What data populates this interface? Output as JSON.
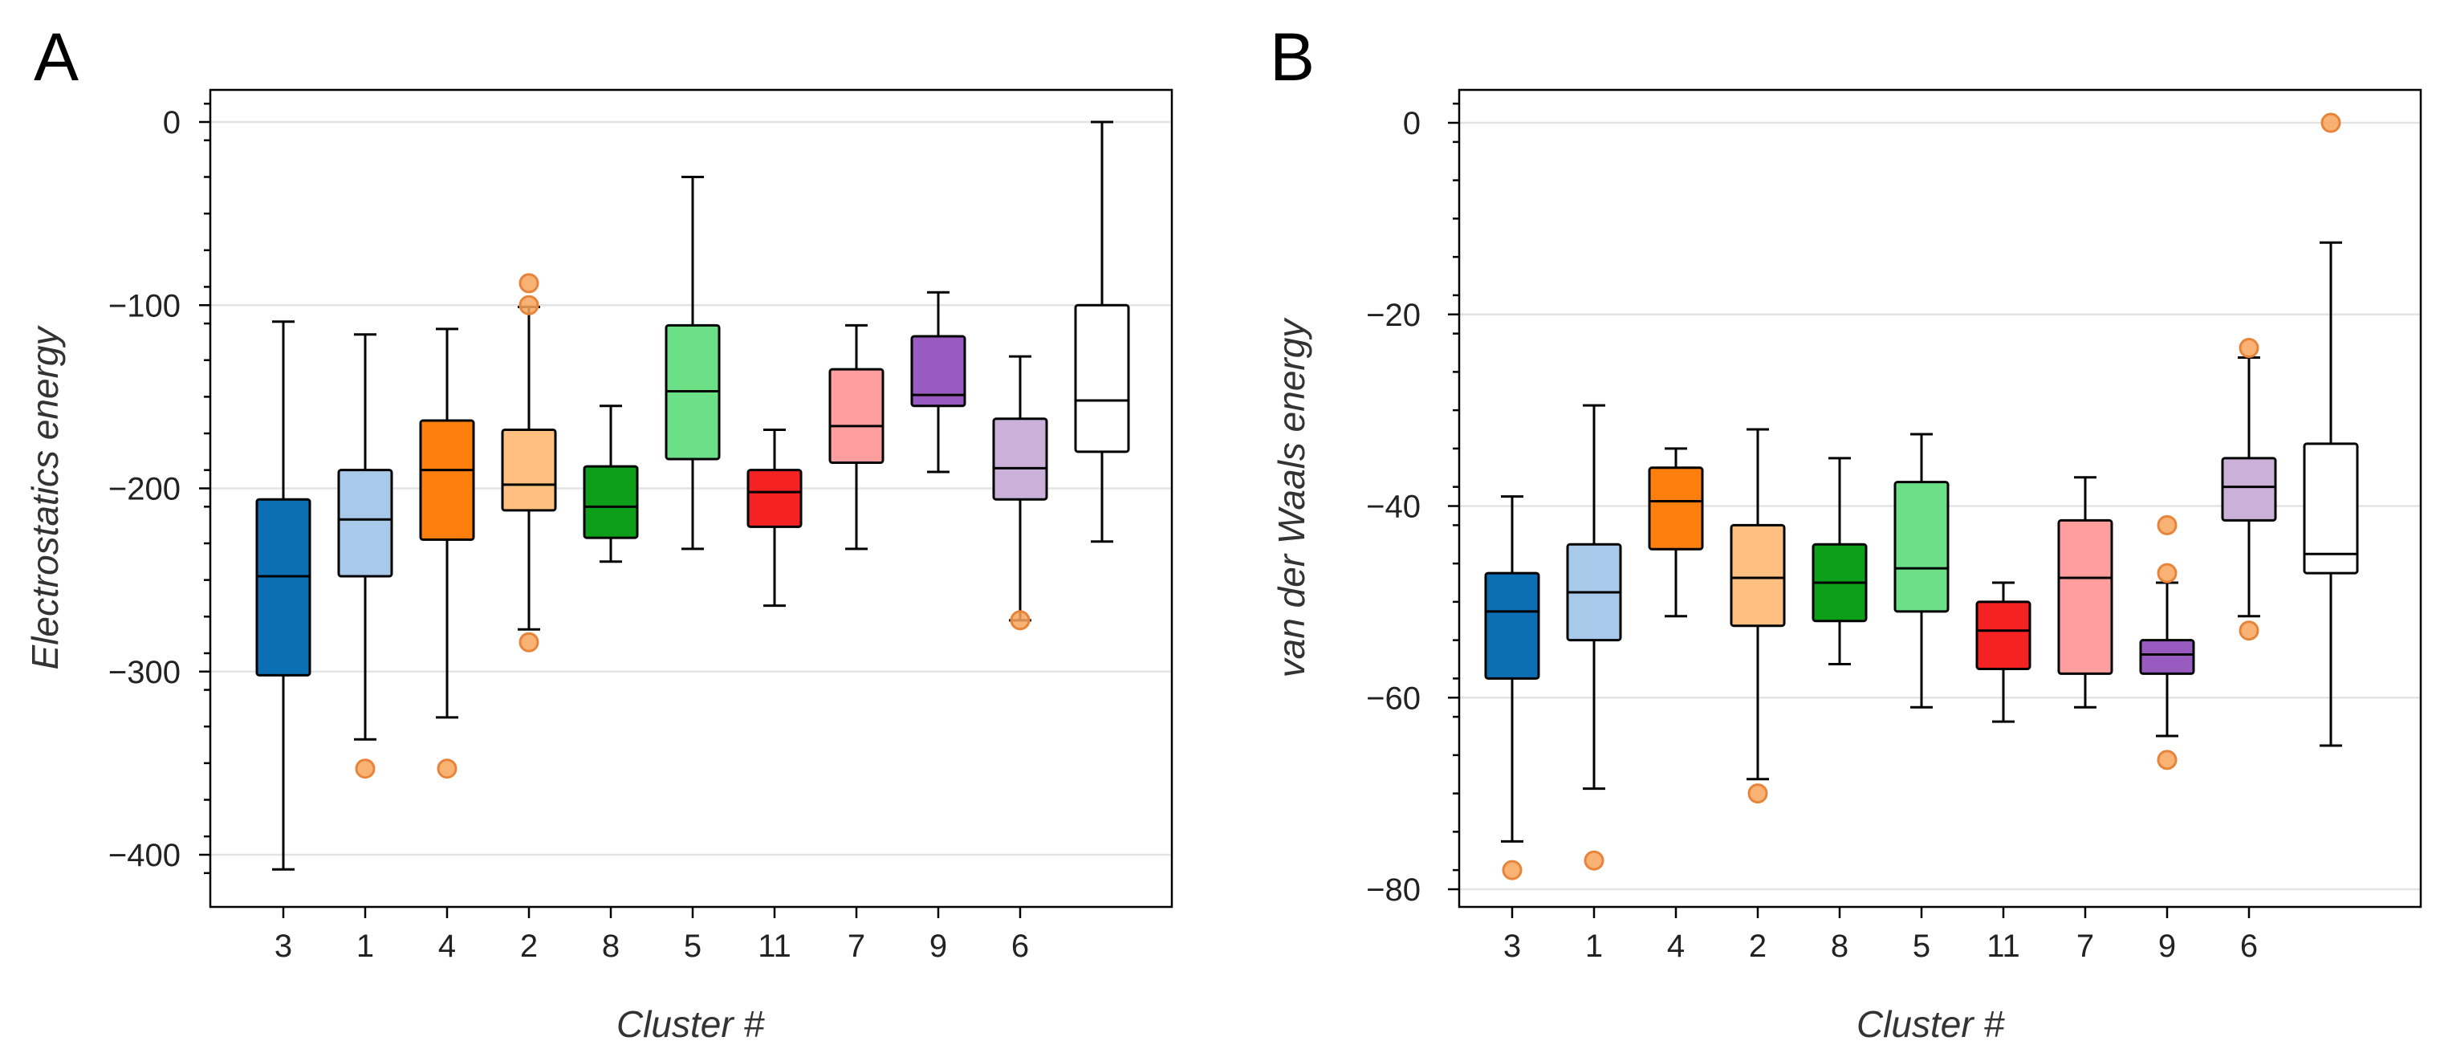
{
  "chart_data": [
    {
      "panel": "A",
      "type": "box",
      "ylabel": "Electrostatics energy",
      "xlabel": "Cluster #",
      "ylim": [
        -430,
        10
      ],
      "yticks": [
        0,
        -100,
        -200,
        -300,
        -400
      ],
      "ytick_labels": [
        "0",
        "−100",
        "−200",
        "−300",
        "−400"
      ],
      "grid": true,
      "boxes": [
        {
          "label": "3",
          "color": "#0c6fb3",
          "whisker_low": -408,
          "q1": -302,
          "median": -248,
          "q3": -206,
          "whisker_high": -109,
          "outliers": []
        },
        {
          "label": "1",
          "color": "#a9c9ea",
          "whisker_low": -337,
          "q1": -248,
          "median": -217,
          "q3": -190,
          "whisker_high": -116,
          "outliers": [
            -353
          ]
        },
        {
          "label": "4",
          "color": "#ff7f0e",
          "whisker_low": -325,
          "q1": -228,
          "median": -190,
          "q3": -163,
          "whisker_high": -113,
          "outliers": [
            -353
          ]
        },
        {
          "label": "2",
          "color": "#ffbf80",
          "whisker_low": -277,
          "q1": -212,
          "median": -198,
          "q3": -168,
          "whisker_high": -101,
          "outliers": [
            -284,
            -100,
            -88
          ]
        },
        {
          "label": "8",
          "color": "#0d9e1a",
          "whisker_low": -240,
          "q1": -227,
          "median": -210,
          "q3": -188,
          "whisker_high": -155,
          "outliers": []
        },
        {
          "label": "5",
          "color": "#6be087",
          "whisker_low": -233,
          "q1": -184,
          "median": -147,
          "q3": -111,
          "whisker_high": -30,
          "outliers": []
        },
        {
          "label": "11",
          "color": "#f42222",
          "whisker_low": -264,
          "q1": -221,
          "median": -202,
          "q3": -190,
          "whisker_high": -168,
          "outliers": []
        },
        {
          "label": "7",
          "color": "#ff9e9e",
          "whisker_low": -233,
          "q1": -186,
          "median": -166,
          "q3": -135,
          "whisker_high": -111,
          "outliers": []
        },
        {
          "label": "9",
          "color": "#9a5bc0",
          "whisker_low": -191,
          "q1": -155,
          "median": -149,
          "q3": -117,
          "whisker_high": -93,
          "outliers": []
        },
        {
          "label": "6",
          "color": "#cbb0da",
          "whisker_low": -272,
          "q1": -206,
          "median": -189,
          "q3": -162,
          "whisker_high": -128,
          "outliers": [
            -272
          ]
        },
        {
          "label": "",
          "color": "#ffffff",
          "whisker_low": -229,
          "q1": -180,
          "median": -152,
          "q3": -100,
          "whisker_high": 0,
          "outliers": []
        }
      ]
    },
    {
      "panel": "B",
      "type": "box",
      "ylabel": "van der Waals energy",
      "xlabel": "Cluster #",
      "ylim": [
        -82,
        2
      ],
      "yticks": [
        0,
        -20,
        -40,
        -60,
        -80
      ],
      "ytick_labels": [
        "0",
        "−20",
        "−40",
        "−60",
        "−80"
      ],
      "grid": true,
      "boxes": [
        {
          "label": "3",
          "color": "#0c6fb3",
          "whisker_low": -75,
          "q1": -58,
          "median": -51,
          "q3": -47,
          "whisker_high": -39,
          "outliers": [
            -78
          ]
        },
        {
          "label": "1",
          "color": "#a9c9ea",
          "whisker_low": -69.5,
          "q1": -54,
          "median": -49,
          "q3": -44,
          "whisker_high": -29.5,
          "outliers": [
            -77
          ]
        },
        {
          "label": "4",
          "color": "#ff7f0e",
          "whisker_low": -51.5,
          "q1": -44.5,
          "median": -39.5,
          "q3": -36,
          "whisker_high": -34,
          "outliers": []
        },
        {
          "label": "2",
          "color": "#ffbf80",
          "whisker_low": -68.5,
          "q1": -52.5,
          "median": -47.5,
          "q3": -42,
          "whisker_high": -32,
          "outliers": [
            -70
          ]
        },
        {
          "label": "8",
          "color": "#0d9e1a",
          "whisker_low": -56.5,
          "q1": -52,
          "median": -48,
          "q3": -44,
          "whisker_high": -35,
          "outliers": []
        },
        {
          "label": "5",
          "color": "#6be087",
          "whisker_low": -61,
          "q1": -51,
          "median": -46.5,
          "q3": -37.5,
          "whisker_high": -32.5,
          "outliers": []
        },
        {
          "label": "11",
          "color": "#f42222",
          "whisker_low": -62.5,
          "q1": -57,
          "median": -53,
          "q3": -50,
          "whisker_high": -48,
          "outliers": []
        },
        {
          "label": "7",
          "color": "#ff9e9e",
          "whisker_low": -61,
          "q1": -57.5,
          "median": -47.5,
          "q3": -41.5,
          "whisker_high": -37,
          "outliers": []
        },
        {
          "label": "9",
          "color": "#9a5bc0",
          "whisker_low": -64,
          "q1": -57.5,
          "median": -55.5,
          "q3": -54,
          "whisker_high": -48,
          "outliers": [
            -47,
            -42,
            -66.5
          ]
        },
        {
          "label": "6",
          "color": "#cbb0da",
          "whisker_low": -51.5,
          "q1": -41.5,
          "median": -38,
          "q3": -35,
          "whisker_high": -24.5,
          "outliers": [
            -23.5,
            -53
          ]
        },
        {
          "label": "",
          "color": "#ffffff",
          "whisker_low": -65,
          "q1": -47,
          "median": -45,
          "q3": -33.5,
          "whisker_high": -12.5,
          "outliers": [
            0
          ]
        }
      ]
    }
  ]
}
